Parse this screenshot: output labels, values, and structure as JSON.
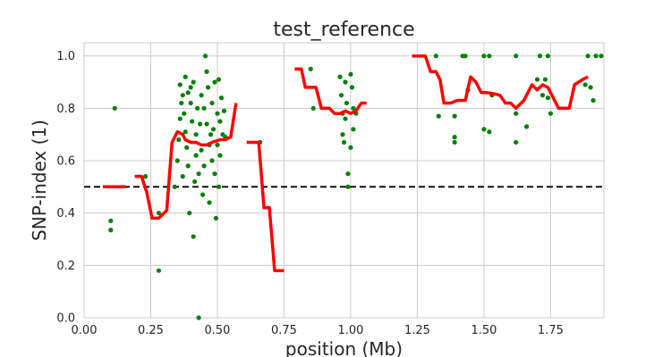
{
  "chart_data": {
    "type": "scatter",
    "title": "test_reference",
    "xlabel": "position (Mb)",
    "ylabel": "SNP-index (1)",
    "xlim": [
      0,
      1.95
    ],
    "ylim": [
      0,
      1.05
    ],
    "x_ticks": [
      0.0,
      0.25,
      0.5,
      0.75,
      1.0,
      1.25,
      1.5,
      1.75
    ],
    "x_tick_labels": [
      "0.00",
      "0.25",
      "0.50",
      "0.75",
      "1.00",
      "1.25",
      "1.50",
      "1.75"
    ],
    "y_ticks": [
      0.0,
      0.2,
      0.4,
      0.6,
      0.8,
      1.0
    ],
    "y_tick_labels": [
      "0.0",
      "0.2",
      "0.4",
      "0.6",
      "0.8",
      "1.0"
    ],
    "grid": true,
    "reference_line": {
      "y": 0.5,
      "style": "dashed",
      "color": "#000000"
    },
    "colors": {
      "points": "#008000",
      "trend": "#ff0000",
      "grid": "#cccccc",
      "frame": "#cccccc"
    },
    "series": [
      {
        "kind": "points",
        "values": [
          [
            0.1,
            0.37
          ],
          [
            0.1,
            0.335
          ],
          [
            0.115,
            0.8
          ],
          [
            0.23,
            0.54
          ],
          [
            0.28,
            0.4
          ],
          [
            0.28,
            0.18
          ],
          [
            0.34,
            0.5
          ],
          [
            0.35,
            0.6
          ],
          [
            0.355,
            0.68
          ],
          [
            0.36,
            0.76
          ],
          [
            0.36,
            0.89
          ],
          [
            0.365,
            0.82
          ],
          [
            0.37,
            0.85
          ],
          [
            0.37,
            0.54
          ],
          [
            0.375,
            0.78
          ],
          [
            0.38,
            0.92
          ],
          [
            0.38,
            0.71
          ],
          [
            0.385,
            0.65
          ],
          [
            0.39,
            0.58
          ],
          [
            0.39,
            0.86
          ],
          [
            0.395,
            0.4
          ],
          [
            0.4,
            0.82
          ],
          [
            0.4,
            0.88
          ],
          [
            0.405,
            0.75
          ],
          [
            0.41,
            0.9
          ],
          [
            0.41,
            0.31
          ],
          [
            0.415,
            0.52
          ],
          [
            0.42,
            0.7
          ],
          [
            0.42,
            0.62
          ],
          [
            0.425,
            0.8
          ],
          [
            0.43,
            0.55
          ],
          [
            0.43,
            0.0
          ],
          [
            0.435,
            0.74
          ],
          [
            0.44,
            0.85
          ],
          [
            0.44,
            0.64
          ],
          [
            0.445,
            0.47
          ],
          [
            0.45,
            0.8
          ],
          [
            0.45,
            0.58
          ],
          [
            0.455,
            1.0
          ],
          [
            0.46,
            0.94
          ],
          [
            0.46,
            0.74
          ],
          [
            0.465,
            0.88
          ],
          [
            0.47,
            0.66
          ],
          [
            0.47,
            0.44
          ],
          [
            0.475,
            0.7
          ],
          [
            0.48,
            0.82
          ],
          [
            0.48,
            0.6
          ],
          [
            0.485,
            0.72
          ],
          [
            0.49,
            0.55
          ],
          [
            0.49,
            0.9
          ],
          [
            0.495,
            0.38
          ],
          [
            0.5,
            0.78
          ],
          [
            0.5,
            0.66
          ],
          [
            0.505,
            0.91
          ],
          [
            0.505,
            0.5
          ],
          [
            0.51,
            0.75
          ],
          [
            0.51,
            0.62
          ],
          [
            0.515,
            0.84
          ],
          [
            0.52,
            0.7
          ],
          [
            0.525,
            0.79
          ],
          [
            0.53,
            0.69
          ],
          [
            0.66,
            0.67
          ],
          [
            0.85,
            0.95
          ],
          [
            0.86,
            0.8
          ],
          [
            0.96,
            0.92
          ],
          [
            0.965,
            0.85
          ],
          [
            0.97,
            0.78
          ],
          [
            0.97,
            0.7
          ],
          [
            0.975,
            0.67
          ],
          [
            0.98,
            0.9
          ],
          [
            0.98,
            0.76
          ],
          [
            0.985,
            0.82
          ],
          [
            0.99,
            0.55
          ],
          [
            0.99,
            0.5
          ],
          [
            1.0,
            0.93
          ],
          [
            1.0,
            0.65
          ],
          [
            1.005,
            0.88
          ],
          [
            1.01,
            0.8
          ],
          [
            1.01,
            0.72
          ],
          [
            1.02,
            0.78
          ],
          [
            1.32,
            1.0
          ],
          [
            1.33,
            0.77
          ],
          [
            1.39,
            0.77
          ],
          [
            1.39,
            0.69
          ],
          [
            1.39,
            0.67
          ],
          [
            1.42,
            1.0
          ],
          [
            1.43,
            1.0
          ],
          [
            1.44,
            0.87
          ],
          [
            1.5,
            1.0
          ],
          [
            1.5,
            0.72
          ],
          [
            1.52,
            1.0
          ],
          [
            1.52,
            0.71
          ],
          [
            1.53,
            0.85
          ],
          [
            1.62,
            1.0
          ],
          [
            1.62,
            0.78
          ],
          [
            1.62,
            0.67
          ],
          [
            1.66,
            0.73
          ],
          [
            1.7,
            0.91
          ],
          [
            1.71,
            1.0
          ],
          [
            1.72,
            0.85
          ],
          [
            1.73,
            0.91
          ],
          [
            1.74,
            0.84
          ],
          [
            1.74,
            1.0
          ],
          [
            1.75,
            0.78
          ],
          [
            1.88,
            0.89
          ],
          [
            1.89,
            1.0
          ],
          [
            1.9,
            0.88
          ],
          [
            1.91,
            0.83
          ],
          [
            1.92,
            1.0
          ],
          [
            1.94,
            1.0
          ]
        ]
      },
      {
        "kind": "trend",
        "segments": [
          [
            [
              0.07,
              0.5
            ],
            [
              0.155,
              0.5
            ]
          ],
          [
            [
              0.19,
              0.54
            ],
            [
              0.215,
              0.54
            ],
            [
              0.235,
              0.48
            ],
            [
              0.255,
              0.38
            ],
            [
              0.28,
              0.38
            ],
            [
              0.31,
              0.41
            ],
            [
              0.33,
              0.67
            ],
            [
              0.35,
              0.71
            ],
            [
              0.37,
              0.7
            ],
            [
              0.38,
              0.68
            ],
            [
              0.4,
              0.67
            ],
            [
              0.42,
              0.67
            ],
            [
              0.44,
              0.66
            ],
            [
              0.46,
              0.66
            ],
            [
              0.48,
              0.67
            ],
            [
              0.51,
              0.68
            ],
            [
              0.53,
              0.68
            ],
            [
              0.55,
              0.69
            ],
            [
              0.57,
              0.82
            ]
          ],
          [
            [
              0.61,
              0.67
            ],
            [
              0.655,
              0.67
            ],
            [
              0.675,
              0.42
            ],
            [
              0.695,
              0.42
            ],
            [
              0.715,
              0.18
            ],
            [
              0.75,
              0.18
            ]
          ],
          [
            [
              0.79,
              0.95
            ],
            [
              0.815,
              0.95
            ],
            [
              0.83,
              0.88
            ],
            [
              0.87,
              0.88
            ],
            [
              0.89,
              0.8
            ],
            [
              0.92,
              0.8
            ],
            [
              0.94,
              0.78
            ],
            [
              0.96,
              0.78
            ],
            [
              0.98,
              0.79
            ],
            [
              1.0,
              0.78
            ],
            [
              1.02,
              0.79
            ],
            [
              1.04,
              0.82
            ],
            [
              1.06,
              0.82
            ]
          ],
          [
            [
              1.23,
              1.0
            ],
            [
              1.28,
              1.0
            ],
            [
              1.3,
              0.94
            ],
            [
              1.32,
              0.94
            ],
            [
              1.335,
              0.91
            ],
            [
              1.35,
              0.82
            ],
            [
              1.375,
              0.82
            ],
            [
              1.4,
              0.83
            ],
            [
              1.43,
              0.83
            ],
            [
              1.45,
              0.92
            ],
            [
              1.47,
              0.9
            ],
            [
              1.49,
              0.86
            ],
            [
              1.51,
              0.86
            ],
            [
              1.54,
              0.855
            ],
            [
              1.56,
              0.85
            ],
            [
              1.58,
              0.82
            ],
            [
              1.6,
              0.82
            ],
            [
              1.62,
              0.8
            ],
            [
              1.65,
              0.83
            ],
            [
              1.68,
              0.89
            ],
            [
              1.7,
              0.87
            ],
            [
              1.72,
              0.89
            ],
            [
              1.74,
              0.88
            ],
            [
              1.76,
              0.84
            ],
            [
              1.78,
              0.8
            ],
            [
              1.8,
              0.8
            ],
            [
              1.82,
              0.8
            ],
            [
              1.84,
              0.89
            ],
            [
              1.87,
              0.91
            ],
            [
              1.89,
              0.92
            ]
          ]
        ]
      }
    ]
  }
}
